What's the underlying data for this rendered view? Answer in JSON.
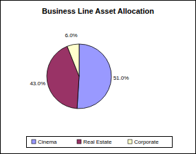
{
  "chart_data": {
    "type": "pie",
    "title": "Business Line Asset Allocation",
    "categories": [
      "Cinema",
      "Real Estate",
      "Corporate"
    ],
    "values": [
      51,
      43,
      6
    ],
    "value_labels": [
      "51.0%",
      "43.0%",
      "6.0%"
    ],
    "colors": [
      "#9999ff",
      "#993366",
      "#ffffcc"
    ],
    "data_labels": true,
    "legend": "bottom"
  }
}
